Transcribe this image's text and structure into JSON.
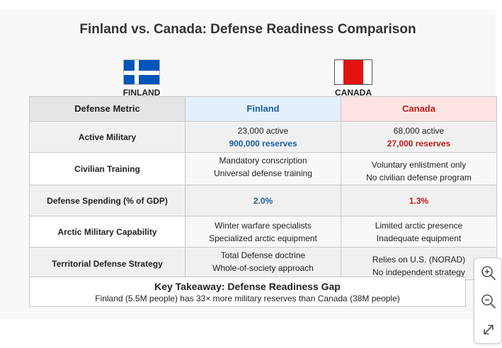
{
  "title": "Finland vs. Canada: Defense Readiness Comparison",
  "finland_label": "FINLAND",
  "canada_label": "CANADA",
  "table": {
    "header": {
      "metric": "Defense Metric",
      "finland": "Finland",
      "canada": "Canada"
    },
    "rows": [
      {
        "metric": "Active Military",
        "finland": [
          "23,000 active",
          "900,000 reserves"
        ],
        "canada": [
          "68,000 active",
          "27,000 reserves"
        ]
      },
      {
        "metric": "Civilian Training",
        "finland": [
          "Mandatory conscription",
          "Universal defense training"
        ],
        "canada": [
          "Voluntary enlistment only",
          "No civilian defense program"
        ]
      },
      {
        "metric": "Defense Spending (% of GDP)",
        "finland": [
          "2.0%"
        ],
        "canada": [
          "1.3%"
        ]
      },
      {
        "metric": "Arctic Military Capability",
        "finland": [
          "Winter warfare specialists",
          "Specialized arctic equipment"
        ],
        "canada": [
          "Limited arctic presence",
          "Inadequate equipment"
        ]
      },
      {
        "metric": "Territorial Defense Strategy",
        "finland": [
          "Total Defense doctrine",
          "Whole-of-society approach"
        ],
        "canada": [
          "Relies on U.S. (NORAD)",
          "No independent strategy"
        ]
      }
    ]
  },
  "takeaway": {
    "title": "Key Takeaway: Defense Readiness Gap",
    "text": "Finland (5.5M people) has 33× more military reserves than Canada (38M people)"
  },
  "colors": {
    "finland": "#1a5fa0",
    "canada": "#c41a1a",
    "finland_flag": "#0055b8",
    "canada_flag": "#e31313"
  },
  "icons": [
    "zoom-in-icon",
    "zoom-out-icon",
    "expand-icon"
  ]
}
